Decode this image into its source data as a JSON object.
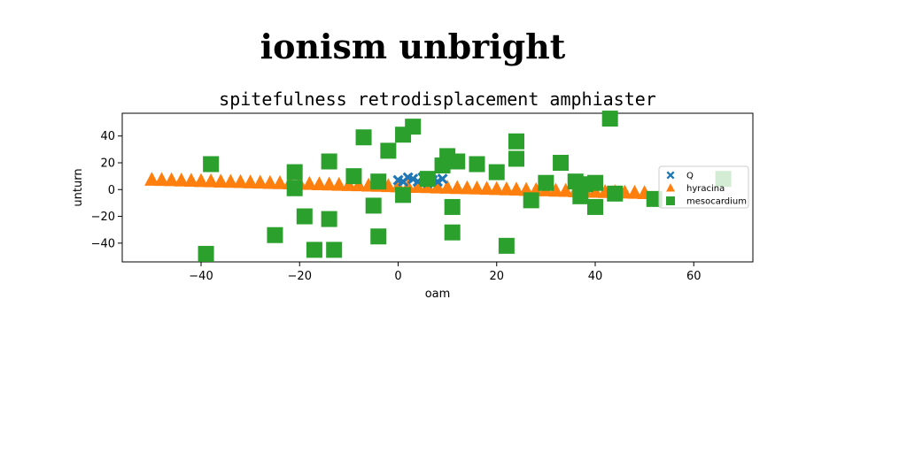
{
  "figure_title": "ionism unbright",
  "chart_data": {
    "type": "scatter",
    "title": "spitefulness retrodisplacement amphiaster",
    "xlabel": "oam",
    "ylabel": "unturn",
    "xlim": [
      -56,
      72
    ],
    "ylim": [
      -54,
      57
    ],
    "xticks": [
      -40,
      -20,
      0,
      20,
      40,
      60
    ],
    "yticks": [
      -40,
      -20,
      0,
      20,
      40
    ],
    "grid": false,
    "legend_position": "right",
    "series": [
      {
        "name": "Q",
        "marker": "x",
        "color": "#1f77b4",
        "points": [
          [
            0,
            7
          ],
          [
            1,
            6
          ],
          [
            2,
            9
          ],
          [
            3,
            8
          ],
          [
            4,
            6
          ],
          [
            5,
            9
          ],
          [
            6,
            5
          ],
          [
            7,
            7
          ],
          [
            8,
            6
          ],
          [
            9,
            8
          ]
        ]
      },
      {
        "name": "hyracina",
        "marker": "triangle",
        "color": "#ff7f0e",
        "points": [
          [
            -50,
            7.4
          ],
          [
            -48,
            7.2
          ],
          [
            -46,
            7
          ],
          [
            -44,
            6.8
          ],
          [
            -42,
            6.6
          ],
          [
            -40,
            6.4
          ],
          [
            -38,
            6.2
          ],
          [
            -36,
            6
          ],
          [
            -34,
            5.8
          ],
          [
            -32,
            5.6
          ],
          [
            -30,
            5.4
          ],
          [
            -28,
            5.2
          ],
          [
            -26,
            5
          ],
          [
            -24,
            4.8
          ],
          [
            -22,
            4.6
          ],
          [
            -20,
            4.4
          ],
          [
            -18,
            4.2
          ],
          [
            -16,
            4
          ],
          [
            -14,
            3.8
          ],
          [
            -12,
            3.6
          ],
          [
            -10,
            3.4
          ],
          [
            -8,
            3.2
          ],
          [
            -6,
            3
          ],
          [
            -4,
            2.8
          ],
          [
            -2,
            2.6
          ],
          [
            0,
            2.4
          ],
          [
            2,
            2.2
          ],
          [
            4,
            2
          ],
          [
            6,
            1.8
          ],
          [
            8,
            1.6
          ],
          [
            10,
            1.4
          ],
          [
            12,
            1.2
          ],
          [
            14,
            1
          ],
          [
            16,
            0.8
          ],
          [
            18,
            0.6
          ],
          [
            20,
            0.4
          ],
          [
            22,
            0.2
          ],
          [
            24,
            0
          ],
          [
            26,
            -0.2
          ],
          [
            28,
            -0.4
          ],
          [
            30,
            -0.6
          ],
          [
            32,
            -0.8
          ],
          [
            34,
            -1
          ],
          [
            36,
            -1.2
          ],
          [
            38,
            -1.4
          ],
          [
            40,
            -1.6
          ],
          [
            42,
            -1.8
          ],
          [
            44,
            -2
          ],
          [
            46,
            -2.2
          ],
          [
            48,
            -2.4
          ],
          [
            50,
            -2.6
          ]
        ]
      },
      {
        "name": "mesocardium",
        "marker": "square",
        "color": "#2ca02c",
        "points": [
          [
            -39,
            -48
          ],
          [
            -38,
            19
          ],
          [
            -25,
            -34
          ],
          [
            -21,
            13
          ],
          [
            -21,
            1
          ],
          [
            -19,
            -20
          ],
          [
            -17,
            -45
          ],
          [
            -14,
            -22
          ],
          [
            -13,
            -45
          ],
          [
            -14,
            21
          ],
          [
            -9,
            10
          ],
          [
            -7,
            39
          ],
          [
            -5,
            -12
          ],
          [
            -4,
            -35
          ],
          [
            -4,
            6
          ],
          [
            -2,
            29
          ],
          [
            1,
            -4
          ],
          [
            1,
            41
          ],
          [
            3,
            47
          ],
          [
            6,
            8
          ],
          [
            9,
            18
          ],
          [
            10,
            25
          ],
          [
            11,
            -13
          ],
          [
            11,
            -32
          ],
          [
            12,
            21
          ],
          [
            16,
            19
          ],
          [
            20,
            13
          ],
          [
            22,
            -42
          ],
          [
            24,
            23
          ],
          [
            24,
            36
          ],
          [
            27,
            -8
          ],
          [
            30,
            5
          ],
          [
            33,
            20
          ],
          [
            36,
            6
          ],
          [
            37,
            -5
          ],
          [
            38,
            4
          ],
          [
            40,
            5
          ],
          [
            40,
            -13
          ],
          [
            43,
            53
          ],
          [
            44,
            -3
          ],
          [
            52,
            -7
          ],
          [
            66,
            8
          ]
        ]
      }
    ]
  }
}
